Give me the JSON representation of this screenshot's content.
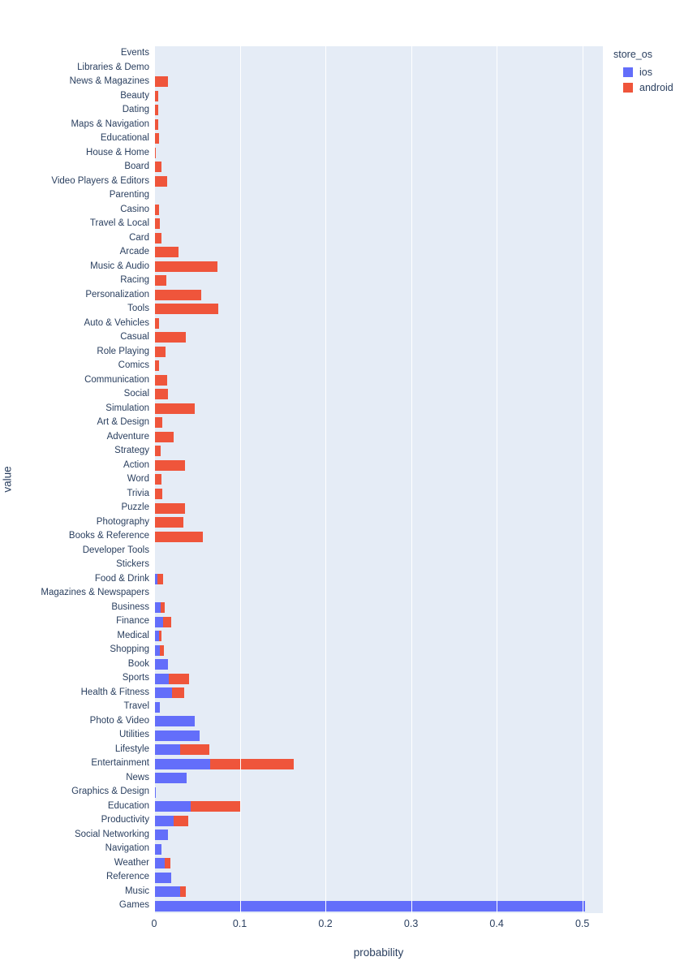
{
  "chart_data": {
    "type": "bar",
    "orientation": "horizontal",
    "barmode": "stacked",
    "title": "",
    "xlabel": "probability",
    "ylabel": "value",
    "xlim": [
      0,
      0.524
    ],
    "x_ticks": [
      0,
      0.1,
      0.2,
      0.3,
      0.4,
      0.5
    ],
    "x_tick_labels": [
      "0",
      "0.1",
      "0.2",
      "0.3",
      "0.4",
      "0.5"
    ],
    "grid": true,
    "plot_bgcolor": "#E5ECF6",
    "paper_bgcolor": "#FFFFFF",
    "grid_color": "#FFFFFF",
    "text_color": "#2a3f5f",
    "legend": {
      "title": "store_os",
      "position": "top-right",
      "entries": [
        {
          "name": "ios",
          "color": "#636EFA"
        },
        {
          "name": "android",
          "color": "#EF553B"
        }
      ]
    },
    "categories": [
      "Events",
      "Libraries & Demo",
      "News & Magazines",
      "Beauty",
      "Dating",
      "Maps & Navigation",
      "Educational",
      "House & Home",
      "Board",
      "Video Players & Editors",
      "Parenting",
      "Casino",
      "Travel & Local",
      "Card",
      "Arcade",
      "Music & Audio",
      "Racing",
      "Personalization",
      "Tools",
      "Auto & Vehicles",
      "Casual",
      "Role Playing",
      "Comics",
      "Communication",
      "Social",
      "Simulation",
      "Art & Design",
      "Adventure",
      "Strategy",
      "Action",
      "Word",
      "Trivia",
      "Puzzle",
      "Photography",
      "Books & Reference",
      "Developer Tools",
      "Stickers",
      "Food & Drink",
      "Magazines & Newspapers",
      "Business",
      "Finance",
      "Medical",
      "Shopping",
      "Book",
      "Sports",
      "Health & Fitness",
      "Travel",
      "Photo & Video",
      "Utilities",
      "Lifestyle",
      "Entertainment",
      "News",
      "Graphics & Design",
      "Education",
      "Productivity",
      "Social Networking",
      "Navigation",
      "Weather",
      "Reference",
      "Music",
      "Games"
    ],
    "series": [
      {
        "name": "ios",
        "color": "#636EFA",
        "values": [
          0,
          0,
          0,
          0,
          0,
          0,
          0,
          0,
          0,
          0,
          0,
          0,
          0,
          0,
          0,
          0,
          0,
          0,
          0,
          0,
          0,
          0,
          0,
          0,
          0,
          0,
          0,
          0,
          0,
          0,
          0,
          0,
          0,
          0,
          0,
          0.0003,
          0.0003,
          0.004,
          0.0003,
          0.008,
          0.01,
          0.006,
          0.007,
          0.016,
          0.017,
          0.021,
          0.007,
          0.047,
          0.053,
          0.03,
          0.065,
          0.038,
          0.0015,
          0.043,
          0.023,
          0.016,
          0.009,
          0.0125,
          0.0195,
          0.0305,
          0.503
        ]
      },
      {
        "name": "android",
        "color": "#EF553B",
        "values": [
          0.0005,
          0.0005,
          0.016,
          0.0045,
          0.0047,
          0.005,
          0.006,
          0.002,
          0.009,
          0.015,
          0.001,
          0.006,
          0.007,
          0.0085,
          0.028,
          0.074,
          0.0145,
          0.055,
          0.075,
          0.006,
          0.037,
          0.0135,
          0.0055,
          0.0155,
          0.016,
          0.047,
          0.0095,
          0.023,
          0.008,
          0.036,
          0.009,
          0.0095,
          0.036,
          0.034,
          0.057,
          0,
          0,
          0.0065,
          0,
          0.004,
          0.01,
          0.0025,
          0.004,
          0,
          0.024,
          0.014,
          0,
          0,
          0,
          0.034,
          0.098,
          0,
          0,
          0.057,
          0.017,
          0,
          0,
          0.006,
          0,
          0.006,
          0
        ]
      }
    ]
  }
}
